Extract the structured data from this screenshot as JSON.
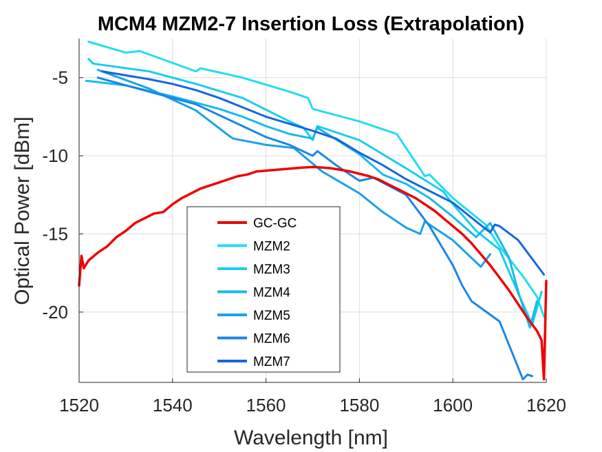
{
  "chart_data": {
    "type": "line",
    "title": "MCM4 MZM2-7 Insertion Loss (Extrapolation)",
    "xlabel": "Wavelength [nm]",
    "ylabel": "Optical Power [dBm]",
    "xlim": [
      1520,
      1620
    ],
    "ylim": [
      -24.5,
      -2.5
    ],
    "xticks": [
      1520,
      1540,
      1560,
      1580,
      1600,
      1620
    ],
    "yticks": [
      -5,
      -10,
      -15,
      -20
    ],
    "grid": true,
    "legend_position": "bottom-center",
    "series": [
      {
        "name": "GC-GC",
        "color": "#ee0000",
        "x": [
          1520,
          1520.5,
          1521,
          1522,
          1524,
          1526,
          1528,
          1530,
          1532,
          1534,
          1536,
          1538,
          1540,
          1542,
          1544,
          1546,
          1548,
          1550,
          1552,
          1554,
          1556,
          1558,
          1560,
          1562,
          1564,
          1566,
          1568,
          1570,
          1572,
          1574,
          1576,
          1578,
          1580,
          1582,
          1584,
          1586,
          1588,
          1590,
          1592,
          1594,
          1596,
          1598,
          1600,
          1602,
          1604,
          1606,
          1608,
          1610,
          1612,
          1614,
          1616,
          1618,
          1619,
          1619.5,
          1620
        ],
        "y": [
          -18.3,
          -16.4,
          -17.2,
          -16.7,
          -16.2,
          -15.8,
          -15.2,
          -14.8,
          -14.3,
          -14.0,
          -13.7,
          -13.6,
          -13.1,
          -12.7,
          -12.4,
          -12.1,
          -11.9,
          -11.7,
          -11.5,
          -11.3,
          -11.2,
          -11.0,
          -10.95,
          -10.9,
          -10.85,
          -10.8,
          -10.75,
          -10.72,
          -10.75,
          -10.8,
          -10.9,
          -11.0,
          -11.15,
          -11.3,
          -11.5,
          -11.8,
          -12.1,
          -12.4,
          -12.7,
          -13.1,
          -13.5,
          -14.0,
          -14.5,
          -15.0,
          -15.6,
          -16.3,
          -17.0,
          -17.8,
          -18.6,
          -19.5,
          -20.4,
          -21.2,
          -21.8,
          -24.3,
          -18.0
        ]
      },
      {
        "name": "MZM2",
        "color": "#22dcf3",
        "x": [
          1522,
          1530,
          1533,
          1545,
          1546,
          1555,
          1565,
          1569,
          1570,
          1580,
          1588,
          1594,
          1595,
          1600,
          1607,
          1610,
          1615,
          1618,
          1619.5
        ],
        "y": [
          -2.7,
          -3.4,
          -3.3,
          -4.6,
          -4.4,
          -5.0,
          -5.9,
          -6.3,
          -7.0,
          -7.8,
          -8.6,
          -11.3,
          -11.2,
          -12.7,
          -14.4,
          -15.8,
          -17.7,
          -19.0,
          -20.3
        ]
      },
      {
        "name": "MZM3",
        "color": "#1ccbf0",
        "x": [
          1522,
          1523,
          1535,
          1545,
          1555,
          1565,
          1568,
          1570,
          1571,
          1580,
          1590,
          1598,
          1600,
          1605,
          1610,
          1614,
          1617,
          1619
        ],
        "y": [
          -3.8,
          -4.1,
          -4.6,
          -5.4,
          -6.3,
          -7.8,
          -8.2,
          -9.0,
          -8.1,
          -9.0,
          -10.8,
          -12.3,
          -13.1,
          -14.8,
          -16.0,
          -18.8,
          -20.8,
          -18.7
        ]
      },
      {
        "name": "MZM4",
        "color": "#17b9ec",
        "x": [
          1521.5,
          1530,
          1540,
          1550,
          1555,
          1560,
          1565,
          1570,
          1571,
          1580,
          1585,
          1590,
          1595,
          1600,
          1605,
          1608,
          1612,
          1614,
          1616.5,
          1618
        ],
        "y": [
          -5.2,
          -5.5,
          -6.2,
          -7.0,
          -7.5,
          -8.1,
          -8.6,
          -8.9,
          -8.2,
          -9.9,
          -11.2,
          -11.8,
          -12.7,
          -13.9,
          -15.2,
          -14.3,
          -16.5,
          -18.7,
          -21.0,
          -19.3
        ]
      },
      {
        "name": "MZM5",
        "color": "#1aa1ea",
        "x": [
          1524,
          1535,
          1545,
          1552,
          1553,
          1560,
          1566,
          1572,
          1580,
          1585,
          1590,
          1593,
          1594,
          1600,
          1606,
          1608
        ],
        "y": [
          -4.5,
          -5.7,
          -7.1,
          -8.7,
          -8.9,
          -9.3,
          -9.5,
          -11.0,
          -12.4,
          -13.6,
          -14.6,
          -15.0,
          -14.2,
          -15.4,
          -17.1,
          -16.3
        ]
      },
      {
        "name": "MZM6",
        "color": "#1a86e6",
        "x": [
          1524,
          1535,
          1545,
          1555,
          1560,
          1565,
          1570,
          1571,
          1575,
          1580,
          1583,
          1590,
          1595,
          1600,
          1602,
          1604,
          1610,
          1615,
          1616,
          1617
        ],
        "y": [
          -5.0,
          -5.9,
          -6.7,
          -8.1,
          -8.8,
          -9.3,
          -10.0,
          -9.7,
          -10.6,
          -11.6,
          -11.4,
          -12.5,
          -14.5,
          -17.0,
          -18.3,
          -19.3,
          -20.6,
          -24.3,
          -24.0,
          -24.1
        ]
      },
      {
        "name": "MZM7",
        "color": "#1566de",
        "x": [
          1525,
          1535,
          1540,
          1545,
          1550,
          1560,
          1570,
          1575,
          1580,
          1585,
          1590,
          1600,
          1605,
          1608,
          1609,
          1610,
          1614,
          1619.5
        ],
        "y": [
          -4.6,
          -5.1,
          -5.4,
          -5.8,
          -6.3,
          -7.5,
          -8.4,
          -8.9,
          -9.8,
          -10.6,
          -11.5,
          -13.0,
          -14.2,
          -14.9,
          -14.4,
          -14.5,
          -15.4,
          -17.6
        ]
      }
    ]
  }
}
